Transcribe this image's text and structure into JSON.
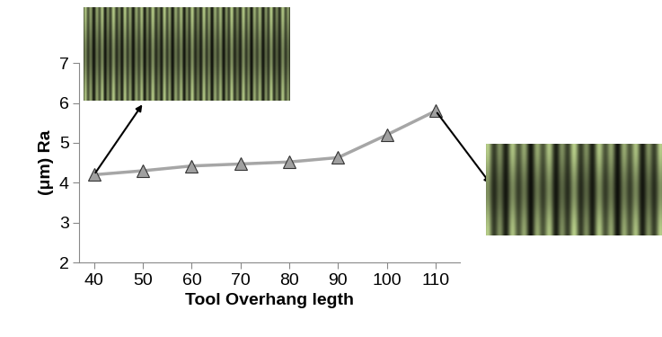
{
  "chart_data": {
    "type": "line",
    "x_label": "Tool Overhang legth",
    "y_label": "(μm) Ra",
    "x": [
      40,
      50,
      60,
      70,
      80,
      90,
      100,
      110
    ],
    "values": [
      4.2,
      4.3,
      4.42,
      4.47,
      4.52,
      4.63,
      5.2,
      5.8
    ],
    "color": "#a6a6a6",
    "marker": "triangle",
    "line_style": "solid",
    "xlim": [
      37,
      115
    ],
    "xticks": [
      40,
      50,
      60,
      70,
      80,
      90,
      100,
      110
    ],
    "ylim": [
      2,
      7
    ],
    "yticks": [
      2,
      3,
      4,
      5,
      6,
      7
    ],
    "grid": false
  }
}
